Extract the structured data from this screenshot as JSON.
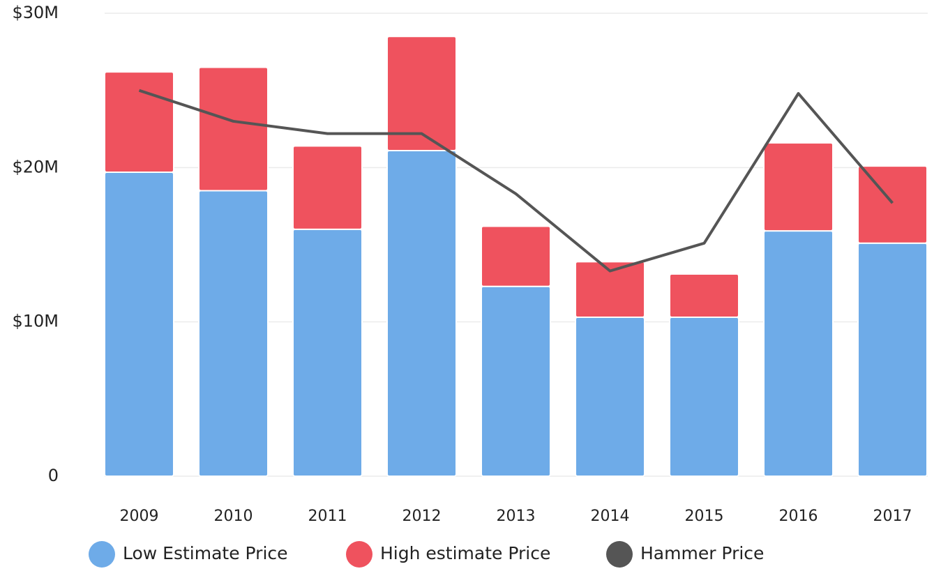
{
  "chart_data": {
    "type": "bar",
    "stacked": true,
    "grid": true,
    "categories": [
      "2009",
      "2010",
      "2011",
      "2012",
      "2013",
      "2014",
      "2015",
      "2016",
      "2017"
    ],
    "series": [
      {
        "name": "Low Estimate Price",
        "color": "#6eabe8",
        "values": [
          19.7,
          18.5,
          16.0,
          21.1,
          12.3,
          10.3,
          10.3,
          15.9,
          15.1
        ]
      },
      {
        "name": "High estimate Price",
        "color": "#ef525e",
        "values": [
          6.5,
          8.0,
          5.4,
          7.4,
          3.9,
          3.6,
          2.8,
          5.7,
          5.0
        ]
      },
      {
        "name": "Hammer Price",
        "color": "#555555",
        "type": "line",
        "values": [
          25.0,
          23.0,
          22.2,
          22.2,
          18.3,
          13.3,
          15.1,
          24.8,
          17.7
        ]
      }
    ],
    "ylim": [
      0,
      30
    ],
    "yticks": [
      0,
      {
        "value": 10,
        "label": "$10M"
      },
      {
        "value": 20,
        "label": "$20M"
      },
      {
        "value": 30,
        "label": "$30M"
      }
    ]
  }
}
